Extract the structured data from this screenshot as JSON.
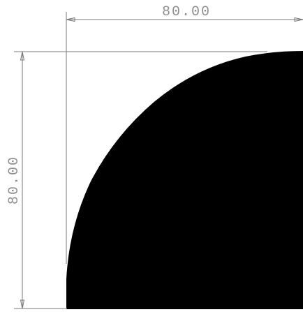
{
  "dimensions": {
    "horizontal": {
      "label": "80.00"
    },
    "vertical": {
      "label": "80.00"
    }
  },
  "shape": {
    "type": "quarter-round profile",
    "fill": "#000000"
  },
  "colors": {
    "dimension_lines": "#7a7a7a",
    "dimension_text": "#8f8f8f",
    "background": "#ffffff"
  }
}
